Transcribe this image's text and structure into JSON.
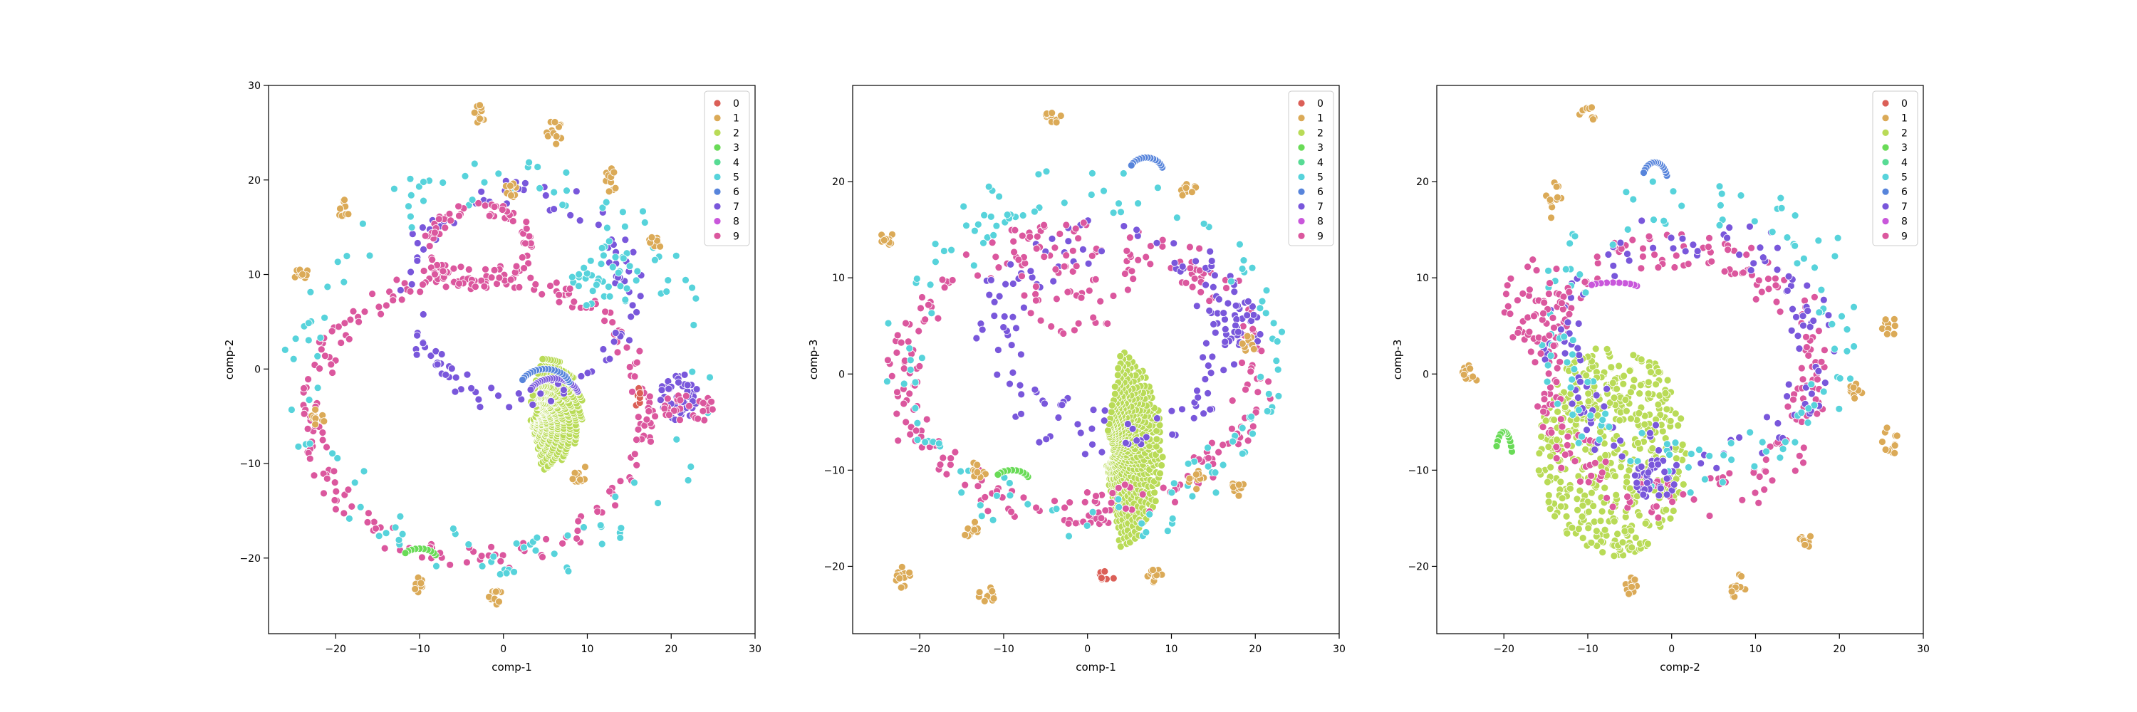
{
  "chart_data": [
    {
      "type": "scatter",
      "xlabel": "comp-1",
      "ylabel": "comp-2",
      "xlim": [
        -28,
        30
      ],
      "ylim": [
        -28,
        30
      ],
      "xticks": [
        -20,
        -10,
        0,
        10,
        20,
        30
      ],
      "yticks": [
        -20,
        -10,
        0,
        10,
        20,
        30
      ],
      "legend_position": "top-right",
      "legend": [
        "0",
        "1",
        "2",
        "3",
        "4",
        "5",
        "6",
        "7",
        "8",
        "9"
      ],
      "clusters": [
        {
          "label": "2",
          "shape": "fan",
          "cx": 3,
          "cy": -4.5,
          "rx": 6.5,
          "ry": 6.5,
          "n": 420
        },
        {
          "label": "9",
          "shape": "ring",
          "cx": -3,
          "cy": -5,
          "rx": 20,
          "ry": 15,
          "n": 230,
          "jitter": 1.2
        },
        {
          "label": "7",
          "shape": "ring",
          "cx": 2,
          "cy": 8,
          "rx": 13,
          "ry": 11,
          "n": 110,
          "jitter": 1.6
        },
        {
          "label": "5",
          "shape": "ring",
          "cx": 0,
          "cy": 0,
          "rx": 24,
          "ry": 20,
          "n": 120,
          "jitter": 2.2
        },
        {
          "label": "9",
          "shape": "ring",
          "cx": -3,
          "cy": 13,
          "rx": 6,
          "ry": 4,
          "n": 90,
          "jitter": 0.7
        },
        {
          "label": "7",
          "shape": "blob",
          "cx": 21,
          "cy": -3,
          "rx": 2.5,
          "ry": 2.5,
          "n": 55
        },
        {
          "label": "9",
          "shape": "blob",
          "cx": 22,
          "cy": -4,
          "rx": 3,
          "ry": 2,
          "n": 30
        },
        {
          "label": "5",
          "shape": "blob",
          "cx": 12,
          "cy": 10,
          "rx": 4,
          "ry": 4,
          "n": 40
        },
        {
          "label": "7",
          "shape": "arc",
          "cx": 6,
          "cy": -3,
          "rx": 3,
          "ry": 2,
          "n": 25
        },
        {
          "label": "6",
          "shape": "arc",
          "cx": 5,
          "cy": -2,
          "rx": 3,
          "ry": 2,
          "n": 20
        },
        {
          "label": "1",
          "shape": "blob",
          "cx": -3,
          "cy": 27,
          "rx": 1,
          "ry": 1,
          "n": 10
        },
        {
          "label": "1",
          "shape": "blob",
          "cx": 6,
          "cy": 25,
          "rx": 1,
          "ry": 1.5,
          "n": 12
        },
        {
          "label": "1",
          "shape": "blob",
          "cx": -19,
          "cy": 17,
          "rx": 1,
          "ry": 1,
          "n": 10
        },
        {
          "label": "1",
          "shape": "blob",
          "cx": -24,
          "cy": 10,
          "rx": 1,
          "ry": 1,
          "n": 10
        },
        {
          "label": "1",
          "shape": "blob",
          "cx": 13,
          "cy": 20,
          "rx": 1,
          "ry": 1.5,
          "n": 10
        },
        {
          "label": "1",
          "shape": "blob",
          "cx": 1,
          "cy": 19,
          "rx": 1,
          "ry": 1,
          "n": 10
        },
        {
          "label": "1",
          "shape": "blob",
          "cx": 9,
          "cy": -11,
          "rx": 1,
          "ry": 1,
          "n": 10
        },
        {
          "label": "1",
          "shape": "blob",
          "cx": -10,
          "cy": -23,
          "rx": 1,
          "ry": 1,
          "n": 10
        },
        {
          "label": "1",
          "shape": "blob",
          "cx": -1,
          "cy": -24,
          "rx": 1,
          "ry": 1,
          "n": 10
        },
        {
          "label": "1",
          "shape": "blob",
          "cx": -22,
          "cy": -5,
          "rx": 1,
          "ry": 1,
          "n": 10
        },
        {
          "label": "1",
          "shape": "blob",
          "cx": 18,
          "cy": 13,
          "rx": 1,
          "ry": 1,
          "n": 10
        },
        {
          "label": "3",
          "shape": "arc",
          "cx": -10,
          "cy": -20,
          "rx": 2,
          "ry": 1,
          "n": 10
        },
        {
          "label": "0",
          "shape": "blob",
          "cx": 16,
          "cy": -3,
          "rx": 1,
          "ry": 1,
          "n": 8
        }
      ]
    },
    {
      "type": "scatter",
      "xlabel": "comp-1",
      "ylabel": "comp-3",
      "xlim": [
        -28,
        30
      ],
      "ylim": [
        -27,
        30
      ],
      "xticks": [
        -20,
        -10,
        0,
        10,
        20,
        30
      ],
      "yticks": [
        -20,
        -10,
        0,
        10,
        20
      ],
      "legend_position": "top-right",
      "legend": [
        "0",
        "1",
        "2",
        "3",
        "4",
        "5",
        "6",
        "7",
        "8",
        "9"
      ],
      "clusters": [
        {
          "label": "2",
          "shape": "fan",
          "cx": 2,
          "cy": -8,
          "rx": 7,
          "ry": 11,
          "n": 460
        },
        {
          "label": "9",
          "shape": "ring",
          "cx": -1,
          "cy": 0,
          "rx": 21,
          "ry": 14,
          "n": 240,
          "jitter": 2
        },
        {
          "label": "7",
          "shape": "ring",
          "cx": 3,
          "cy": 4,
          "rx": 14,
          "ry": 10,
          "n": 140,
          "jitter": 2.4
        },
        {
          "label": "5",
          "shape": "ring",
          "cx": 0,
          "cy": 2,
          "rx": 22,
          "ry": 17,
          "n": 130,
          "jitter": 2.6
        },
        {
          "label": "9",
          "shape": "blob",
          "cx": -2,
          "cy": 10,
          "rx": 8,
          "ry": 6,
          "n": 60
        },
        {
          "label": "7",
          "shape": "blob",
          "cx": 18,
          "cy": 5,
          "rx": 3,
          "ry": 3,
          "n": 30
        },
        {
          "label": "6",
          "shape": "arc",
          "cx": 7,
          "cy": 21,
          "rx": 2,
          "ry": 1.5,
          "n": 15
        },
        {
          "label": "1",
          "shape": "blob",
          "cx": -4,
          "cy": 27,
          "rx": 1,
          "ry": 1,
          "n": 10
        },
        {
          "label": "1",
          "shape": "blob",
          "cx": -24,
          "cy": 14,
          "rx": 1,
          "ry": 1,
          "n": 10
        },
        {
          "label": "1",
          "shape": "blob",
          "cx": -22,
          "cy": -21,
          "rx": 1,
          "ry": 1.5,
          "n": 12
        },
        {
          "label": "1",
          "shape": "blob",
          "cx": -12,
          "cy": -23,
          "rx": 1,
          "ry": 1,
          "n": 10
        },
        {
          "label": "1",
          "shape": "blob",
          "cx": -14,
          "cy": -16,
          "rx": 1,
          "ry": 1,
          "n": 10
        },
        {
          "label": "1",
          "shape": "blob",
          "cx": 8,
          "cy": -21,
          "rx": 1,
          "ry": 1,
          "n": 10
        },
        {
          "label": "1",
          "shape": "blob",
          "cx": 12,
          "cy": 19,
          "rx": 1,
          "ry": 1,
          "n": 10
        },
        {
          "label": "1",
          "shape": "blob",
          "cx": 19,
          "cy": 3,
          "rx": 1,
          "ry": 1,
          "n": 10
        },
        {
          "label": "1",
          "shape": "blob",
          "cx": 18,
          "cy": -12,
          "rx": 1,
          "ry": 1,
          "n": 10
        },
        {
          "label": "1",
          "shape": "blob",
          "cx": 13,
          "cy": -11,
          "rx": 1,
          "ry": 1,
          "n": 10
        },
        {
          "label": "1",
          "shape": "blob",
          "cx": -13,
          "cy": -10,
          "rx": 1,
          "ry": 1,
          "n": 10
        },
        {
          "label": "3",
          "shape": "arc",
          "cx": -9,
          "cy": -11,
          "rx": 2,
          "ry": 1,
          "n": 10
        },
        {
          "label": "0",
          "shape": "blob",
          "cx": 2,
          "cy": -21,
          "rx": 1.5,
          "ry": 0.5,
          "n": 8
        }
      ]
    },
    {
      "type": "scatter",
      "xlabel": "comp-2",
      "ylabel": "comp-3",
      "xlim": [
        -28,
        30
      ],
      "ylim": [
        -27,
        30
      ],
      "xticks": [
        -20,
        -10,
        0,
        10,
        20,
        30
      ],
      "yticks": [
        -20,
        -10,
        0,
        10,
        20
      ],
      "legend_position": "top-right",
      "legend": [
        "0",
        "1",
        "2",
        "3",
        "4",
        "5",
        "6",
        "7",
        "8",
        "9"
      ],
      "clusters": [
        {
          "label": "2",
          "shape": "disc",
          "cx": -7,
          "cy": -8,
          "rx": 9,
          "ry": 11,
          "n": 480
        },
        {
          "label": "9",
          "shape": "ring",
          "cx": 1,
          "cy": 0,
          "rx": 16,
          "ry": 13,
          "n": 230,
          "jitter": 2
        },
        {
          "label": "7",
          "shape": "ring",
          "cx": 2,
          "cy": 3,
          "rx": 15,
          "ry": 11,
          "n": 130,
          "jitter": 2.4
        },
        {
          "label": "5",
          "shape": "ring",
          "cx": 3,
          "cy": 4,
          "rx": 17,
          "ry": 14,
          "n": 120,
          "jitter": 2.6
        },
        {
          "label": "9",
          "shape": "blob",
          "cx": -16,
          "cy": 7,
          "rx": 4,
          "ry": 5,
          "n": 50
        },
        {
          "label": "7",
          "shape": "blob",
          "cx": -2,
          "cy": -11,
          "rx": 2.5,
          "ry": 2,
          "n": 30
        },
        {
          "label": "6",
          "shape": "arc",
          "cx": -2,
          "cy": 20,
          "rx": 1.5,
          "ry": 2,
          "n": 15
        },
        {
          "label": "1",
          "shape": "blob",
          "cx": -10,
          "cy": 27,
          "rx": 1,
          "ry": 1,
          "n": 10
        },
        {
          "label": "1",
          "shape": "blob",
          "cx": -14,
          "cy": 18,
          "rx": 1,
          "ry": 2,
          "n": 12
        },
        {
          "label": "1",
          "shape": "blob",
          "cx": -24,
          "cy": 0,
          "rx": 1,
          "ry": 1,
          "n": 10
        },
        {
          "label": "1",
          "shape": "blob",
          "cx": -5,
          "cy": -22,
          "rx": 1,
          "ry": 1,
          "n": 10
        },
        {
          "label": "1",
          "shape": "blob",
          "cx": 8,
          "cy": -22,
          "rx": 1,
          "ry": 1.5,
          "n": 12
        },
        {
          "label": "1",
          "shape": "blob",
          "cx": 26,
          "cy": -7,
          "rx": 1,
          "ry": 1.5,
          "n": 12
        },
        {
          "label": "1",
          "shape": "blob",
          "cx": 22,
          "cy": -2,
          "rx": 1,
          "ry": 1,
          "n": 10
        },
        {
          "label": "1",
          "shape": "blob",
          "cx": 26,
          "cy": 5,
          "rx": 1,
          "ry": 1,
          "n": 10
        },
        {
          "label": "1",
          "shape": "blob",
          "cx": 16,
          "cy": -17,
          "rx": 1,
          "ry": 1,
          "n": 10
        },
        {
          "label": "3",
          "shape": "arc",
          "cx": -20,
          "cy": -9,
          "rx": 1,
          "ry": 3,
          "n": 12
        },
        {
          "label": "8",
          "shape": "arc",
          "cx": -7,
          "cy": 9,
          "rx": 3,
          "ry": 0.5,
          "n": 10
        }
      ]
    }
  ],
  "colors": {
    "0": "#db5f57",
    "1": "#dbaa57",
    "2": "#b9db57",
    "3": "#69db57",
    "4": "#57db94",
    "5": "#57d3db",
    "6": "#5784db",
    "7": "#7957db",
    "8": "#c957db",
    "9": "#db579e"
  }
}
